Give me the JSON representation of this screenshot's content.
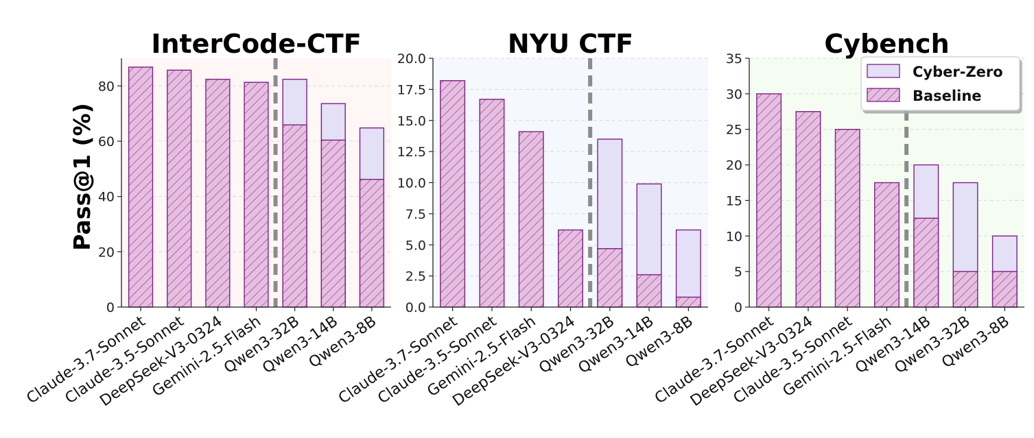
{
  "figure": {
    "ylabel": "Pass@1 (%)",
    "legend": [
      {
        "name": "Cyber-Zero",
        "style": "solid"
      },
      {
        "name": "Baseline",
        "style": "hatched"
      }
    ],
    "colors": {
      "baseline_fill": "#e6bfe0",
      "cyberzero_fill": "#e4e0f6",
      "edge": "#7e1f86",
      "divider": "#8c8c8c"
    }
  },
  "chart_data": [
    {
      "type": "bar",
      "title": "InterCode-CTF",
      "background": "#fff6f6",
      "ylim": [
        0,
        90
      ],
      "yticks": [
        0,
        20,
        40,
        60,
        80
      ],
      "ytick_labels": [
        "0",
        "20",
        "40",
        "60",
        "80"
      ],
      "divider_after_index": 3,
      "categories": [
        "Claude-3.7-Sonnet",
        "Claude-3.5-Sonnet",
        "DeepSeek-V3-0324",
        "Gemini-2.5-Flash",
        "Qwen3-32B",
        "Qwen3-14B",
        "Qwen3-8B"
      ],
      "series": [
        {
          "name": "Baseline",
          "values": [
            86.8,
            85.7,
            82.4,
            81.3,
            65.9,
            60.4,
            46.2
          ]
        },
        {
          "name": "Cyber-Zero",
          "values": [
            null,
            null,
            null,
            null,
            82.4,
            73.6,
            64.8
          ]
        }
      ]
    },
    {
      "type": "bar",
      "title": "NYU CTF",
      "background": "#f5f8fe",
      "ylim": [
        0,
        20
      ],
      "yticks": [
        0,
        2.5,
        5,
        7.5,
        10,
        12.5,
        15,
        17.5,
        20
      ],
      "ytick_labels": [
        "0.0",
        "2.5",
        "5.0",
        "7.5",
        "10.0",
        "12.5",
        "15.0",
        "17.5",
        "20.0"
      ],
      "divider_after_index": 3,
      "categories": [
        "Claude-3.7-Sonnet",
        "Claude-3.5-Sonnet",
        "Gemini-2.5-Flash",
        "DeepSeek-V3-0324",
        "Qwen3-32B",
        "Qwen3-14B",
        "Qwen3-8B"
      ],
      "series": [
        {
          "name": "Baseline",
          "values": [
            18.2,
            16.7,
            14.1,
            6.2,
            4.7,
            2.6,
            0.8
          ]
        },
        {
          "name": "Cyber-Zero",
          "values": [
            null,
            null,
            null,
            null,
            13.5,
            9.9,
            6.2
          ]
        }
      ]
    },
    {
      "type": "bar",
      "title": "Cybench",
      "background": "#f5fdf3",
      "ylim": [
        0,
        35
      ],
      "yticks": [
        0,
        5,
        10,
        15,
        20,
        25,
        30,
        35
      ],
      "ytick_labels": [
        "0",
        "5",
        "10",
        "15",
        "20",
        "25",
        "30",
        "35"
      ],
      "divider_after_index": 3,
      "categories": [
        "Claude-3.7-Sonnet",
        "DeepSeek-V3-0324",
        "Claude-3.5-Sonnet",
        "Gemini-2.5-Flash",
        "Qwen3-14B",
        "Qwen3-32B",
        "Qwen3-8B"
      ],
      "series": [
        {
          "name": "Baseline",
          "values": [
            30,
            27.5,
            25,
            17.5,
            12.5,
            5,
            5
          ]
        },
        {
          "name": "Cyber-Zero",
          "values": [
            null,
            null,
            null,
            null,
            20,
            17.5,
            10
          ]
        }
      ]
    }
  ]
}
